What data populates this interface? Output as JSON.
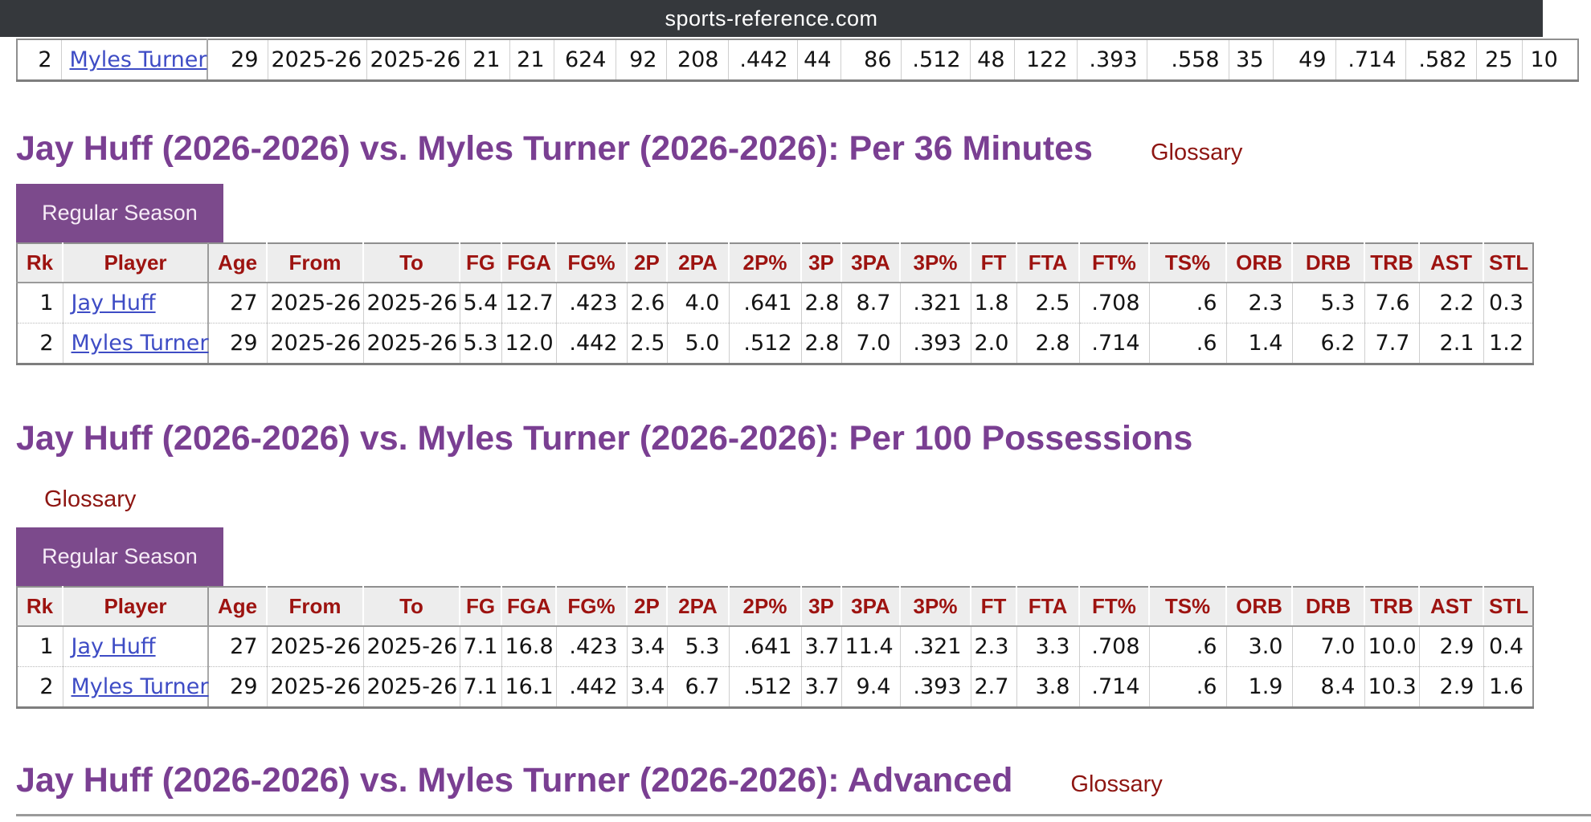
{
  "banner": {
    "title": "sports-reference.com"
  },
  "colors": {
    "topbar_bg": "#35383c",
    "accent_purple": "#7a3f92",
    "tab_purple": "#7c4a8c",
    "header_red": "#9d1310",
    "glossary_red": "#8e1612",
    "link_blue": "#3e4cc5"
  },
  "totals_partial_row": {
    "cells": [
      "2",
      "Myles Turner",
      "29",
      "2025-26",
      "2025-26",
      "21",
      "21",
      "624",
      "92",
      "208",
      ".442",
      "44",
      "86",
      ".512",
      "48",
      "122",
      ".393",
      ".558",
      "35",
      "49",
      ".714",
      ".582",
      "25",
      "10"
    ]
  },
  "sections": [
    {
      "heading": "Jay Huff (2026-2026) vs. Myles Turner (2026-2026): Per 36 Minutes",
      "glossary_label": "Glossary",
      "tab_label": "Regular Season",
      "columns": [
        "Rk",
        "Player",
        "Age",
        "From",
        "To",
        "FG",
        "FGA",
        "FG%",
        "2P",
        "2PA",
        "2P%",
        "3P",
        "3PA",
        "3P%",
        "FT",
        "FTA",
        "FT%",
        "TS%",
        "ORB",
        "DRB",
        "TRB",
        "AST",
        "STL"
      ],
      "rows": [
        [
          "1",
          "Jay Huff",
          "27",
          "2025-26",
          "2025-26",
          "5.4",
          "12.7",
          ".423",
          "2.6",
          "4.0",
          ".641",
          "2.8",
          "8.7",
          ".321",
          "1.8",
          "2.5",
          ".708",
          ".6",
          "2.3",
          "5.3",
          "7.6",
          "2.2",
          "0.3"
        ],
        [
          "2",
          "Myles Turner",
          "29",
          "2025-26",
          "2025-26",
          "5.3",
          "12.0",
          ".442",
          "2.5",
          "5.0",
          ".512",
          "2.8",
          "7.0",
          ".393",
          "2.0",
          "2.8",
          ".714",
          ".6",
          "1.4",
          "6.2",
          "7.7",
          "2.1",
          "1.2"
        ]
      ]
    },
    {
      "heading": "Jay Huff (2026-2026) vs. Myles Turner (2026-2026): Per 100 Possessions",
      "glossary_label": "Glossary",
      "tab_label": "Regular Season",
      "columns": [
        "Rk",
        "Player",
        "Age",
        "From",
        "To",
        "FG",
        "FGA",
        "FG%",
        "2P",
        "2PA",
        "2P%",
        "3P",
        "3PA",
        "3P%",
        "FT",
        "FTA",
        "FT%",
        "TS%",
        "ORB",
        "DRB",
        "TRB",
        "AST",
        "STL"
      ],
      "rows": [
        [
          "1",
          "Jay Huff",
          "27",
          "2025-26",
          "2025-26",
          "7.1",
          "16.8",
          ".423",
          "3.4",
          "5.3",
          ".641",
          "3.7",
          "11.4",
          ".321",
          "2.3",
          "3.3",
          ".708",
          ".6",
          "3.0",
          "7.0",
          "10.0",
          "2.9",
          "0.4"
        ],
        [
          "2",
          "Myles Turner",
          "29",
          "2025-26",
          "2025-26",
          "7.1",
          "16.1",
          ".442",
          "3.4",
          "6.7",
          ".512",
          "3.7",
          "9.4",
          ".393",
          "2.7",
          "3.8",
          ".714",
          ".6",
          "1.9",
          "8.4",
          "10.3",
          "2.9",
          "1.6"
        ]
      ]
    }
  ],
  "advanced_section": {
    "heading": "Jay Huff (2026-2026) vs. Myles Turner (2026-2026): Advanced",
    "glossary_label": "Glossary"
  }
}
